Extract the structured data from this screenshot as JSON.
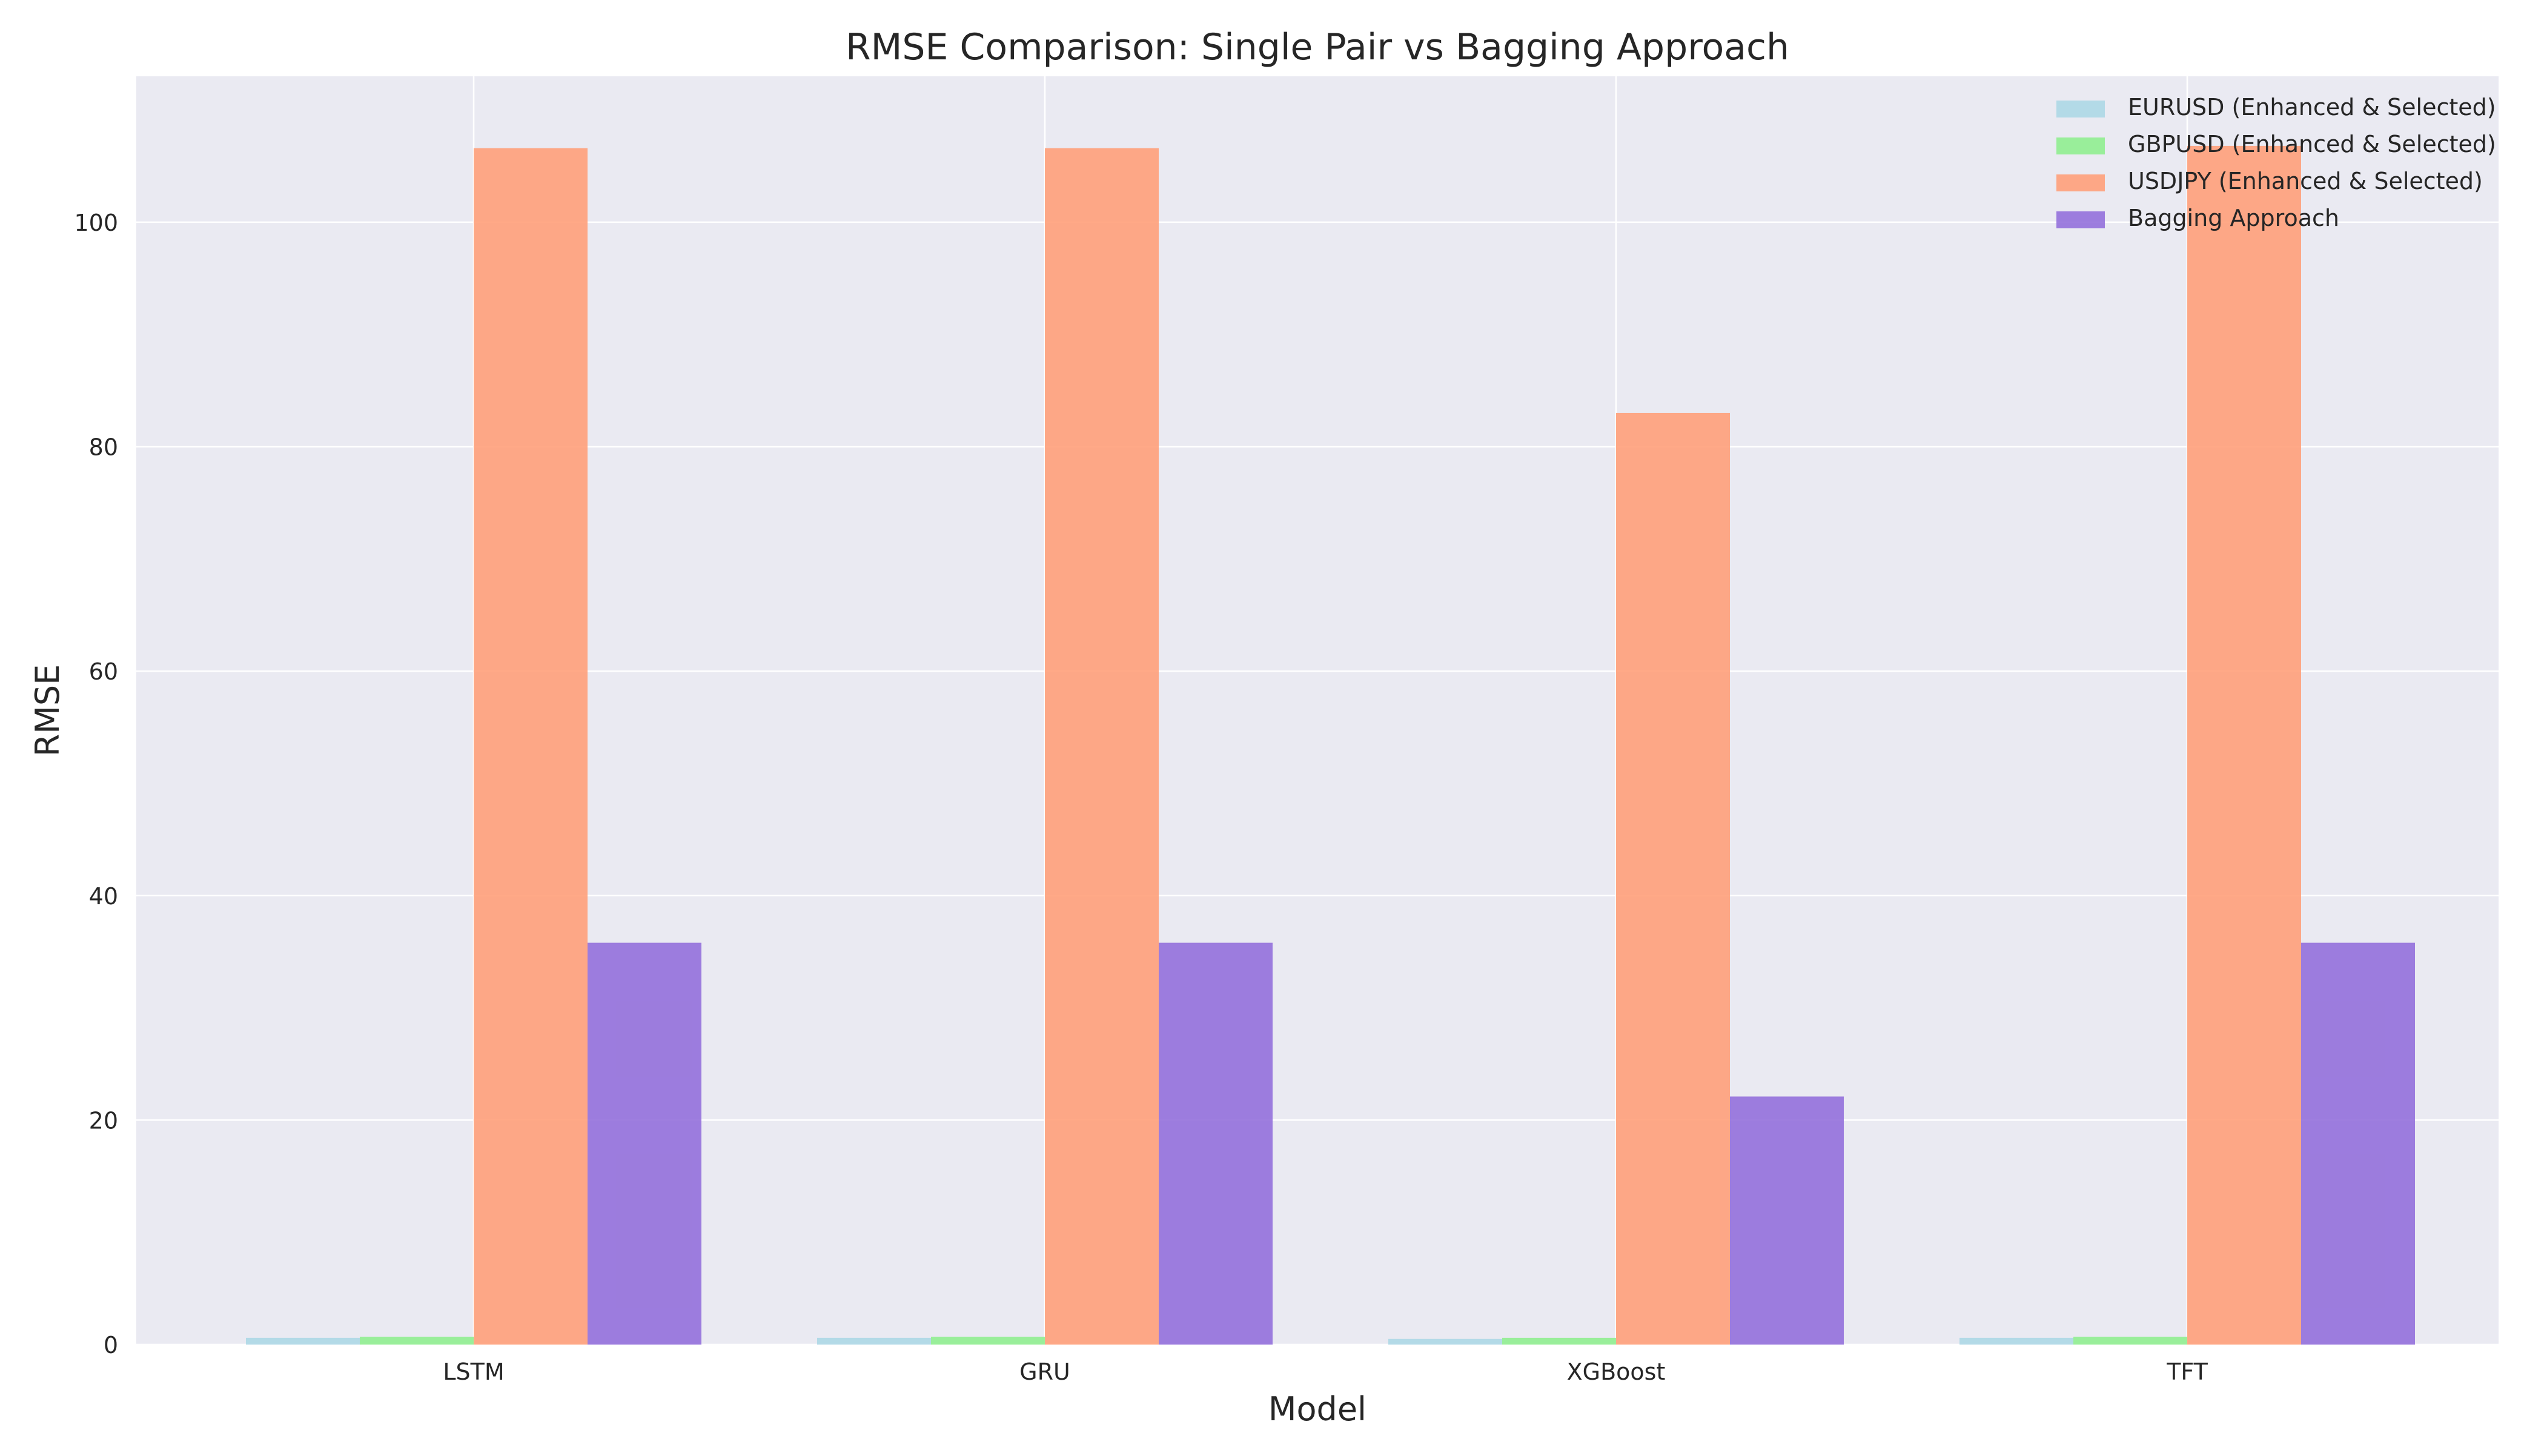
{
  "chart_data": {
    "type": "bar",
    "title": "RMSE Comparison: Single Pair vs Bagging Approach",
    "xlabel": "Model",
    "ylabel": "RMSE",
    "categories": [
      "LSTM",
      "GRU",
      "XGBoost",
      "TFT"
    ],
    "series": [
      {
        "name": "EURUSD (Enhanced & Selected)",
        "color": "#add8e6",
        "values": [
          0.6,
          0.6,
          0.5,
          0.6
        ]
      },
      {
        "name": "GBPUSD (Enhanced & Selected)",
        "color": "#90ee90",
        "values": [
          0.7,
          0.7,
          0.6,
          0.7
        ]
      },
      {
        "name": "USDJPY (Enhanced & Selected)",
        "color": "#ffa07a",
        "values": [
          106.6,
          106.6,
          83.0,
          106.8
        ]
      },
      {
        "name": "Bagging Approach",
        "color": "#9370db",
        "values": [
          35.8,
          35.8,
          22.1,
          35.8
        ]
      }
    ],
    "ylim": [
      0,
      113
    ],
    "yticks": [
      0,
      20,
      40,
      60,
      80,
      100
    ],
    "grid": true,
    "legend_position": "top-right",
    "plot_background": "#eaeaf2"
  }
}
